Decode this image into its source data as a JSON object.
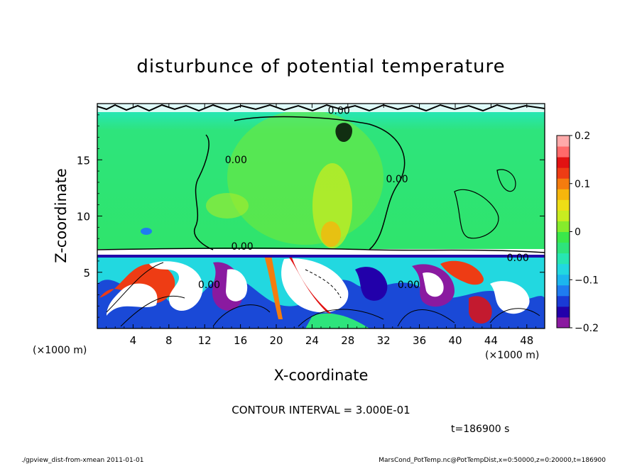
{
  "chart_data": {
    "type": "heatmap",
    "title": "disturbunce of potential temperature",
    "xlabel": "X-coordinate",
    "ylabel": "Z-coordinate",
    "x_unit": "(×1000 m)",
    "y_unit": "(×1000 m)",
    "xlim": [
      0,
      50
    ],
    "ylim": [
      0,
      20
    ],
    "x_ticks": [
      4,
      8,
      12,
      16,
      20,
      24,
      28,
      32,
      36,
      40,
      44,
      48
    ],
    "y_ticks": [
      5,
      10,
      15
    ],
    "colorbar": {
      "range": [
        -0.2,
        0.2
      ],
      "ticks": [
        {
          "value": 0.2,
          "label": "0.2"
        },
        {
          "value": 0.1,
          "label": "0.1"
        },
        {
          "value": 0,
          "label": "0"
        },
        {
          "value": -0.1,
          "label": "−0.1"
        },
        {
          "value": -0.2,
          "label": "−0.2"
        }
      ],
      "colors": [
        "#8a1aa0",
        "#2200aa",
        "#1a3ad6",
        "#1f7cf0",
        "#1cb6ee",
        "#22d8e0",
        "#27e6b2",
        "#2ee47c",
        "#3ae84a",
        "#86ec2c",
        "#c8ec20",
        "#eede16",
        "#f6b60c",
        "#f47c0e",
        "#ee3c14",
        "#e21212",
        "#ff6a6a",
        "#ffaaaa"
      ]
    },
    "contour_labels": [
      {
        "text": "0.00",
        "x": 27.0,
        "z": 19.1
      },
      {
        "text": "0.00",
        "x": 15.5,
        "z": 14.7
      },
      {
        "text": "0.00",
        "x": 33.5,
        "z": 13.0
      },
      {
        "text": "0.00",
        "x": 16.2,
        "z": 7.0
      },
      {
        "text": "0.00",
        "x": 12.5,
        "z": 3.6
      },
      {
        "text": "0.00",
        "x": 34.8,
        "z": 3.6
      },
      {
        "text": "0.00",
        "x": 47.0,
        "z": 6.0
      }
    ],
    "contour_interval_text": "CONTOUR INTERVAL = 3.000E-01",
    "time_text": "t=186900 s"
  },
  "footer": {
    "left": "./gpview_dist-from-xmean  2011-01-01",
    "right": "MarsCond_PotTemp.nc@PotTempDist,x=0:50000,z=0:20000,t=186900"
  }
}
